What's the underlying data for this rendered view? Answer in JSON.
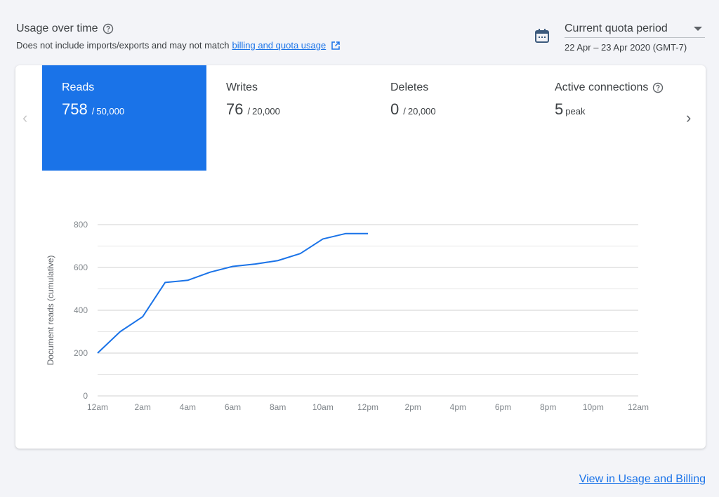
{
  "header": {
    "title": "Usage over time",
    "subtitle_text": "Does not include imports/exports and may not match",
    "subtitle_link": "billing and quota usage"
  },
  "period": {
    "label": "Current quota period",
    "range": "22 Apr – 23 Apr 2020 (GMT-7)"
  },
  "tiles": [
    {
      "label": "Reads",
      "value": "758",
      "sep": "/",
      "limit": "50,000",
      "active": true
    },
    {
      "label": "Writes",
      "value": "76",
      "sep": "/",
      "limit": "20,000",
      "active": false
    },
    {
      "label": "Deletes",
      "value": "0",
      "sep": "/",
      "limit": "20,000",
      "active": false
    },
    {
      "label": "Active connections",
      "value": "5",
      "sep": "",
      "limit": "peak",
      "active": false
    }
  ],
  "chart_data": {
    "type": "line",
    "ylabel": "Document reads (cumulative)",
    "xlabel": "",
    "ylim": [
      0,
      800
    ],
    "yticks": [
      0,
      200,
      400,
      600,
      800
    ],
    "xticks": [
      "12am",
      "2am",
      "4am",
      "6am",
      "8am",
      "10am",
      "12pm",
      "2pm",
      "4pm",
      "6pm",
      "8pm",
      "10pm",
      "12am"
    ],
    "x_hours_range": [
      0,
      24
    ],
    "series": [
      {
        "color": "#1a73e8",
        "x": [
          0,
          1,
          2,
          3,
          4,
          5,
          6,
          7,
          8,
          9,
          10,
          11,
          12
        ],
        "values": [
          200,
          300,
          370,
          530,
          540,
          578,
          605,
          616,
          632,
          665,
          733,
          758,
          758
        ]
      }
    ],
    "grid": true
  },
  "footer": {
    "link": "View in Usage and Billing"
  },
  "colors": {
    "accent": "#1a73e8",
    "background": "#f3f4f8",
    "card": "#ffffff"
  }
}
